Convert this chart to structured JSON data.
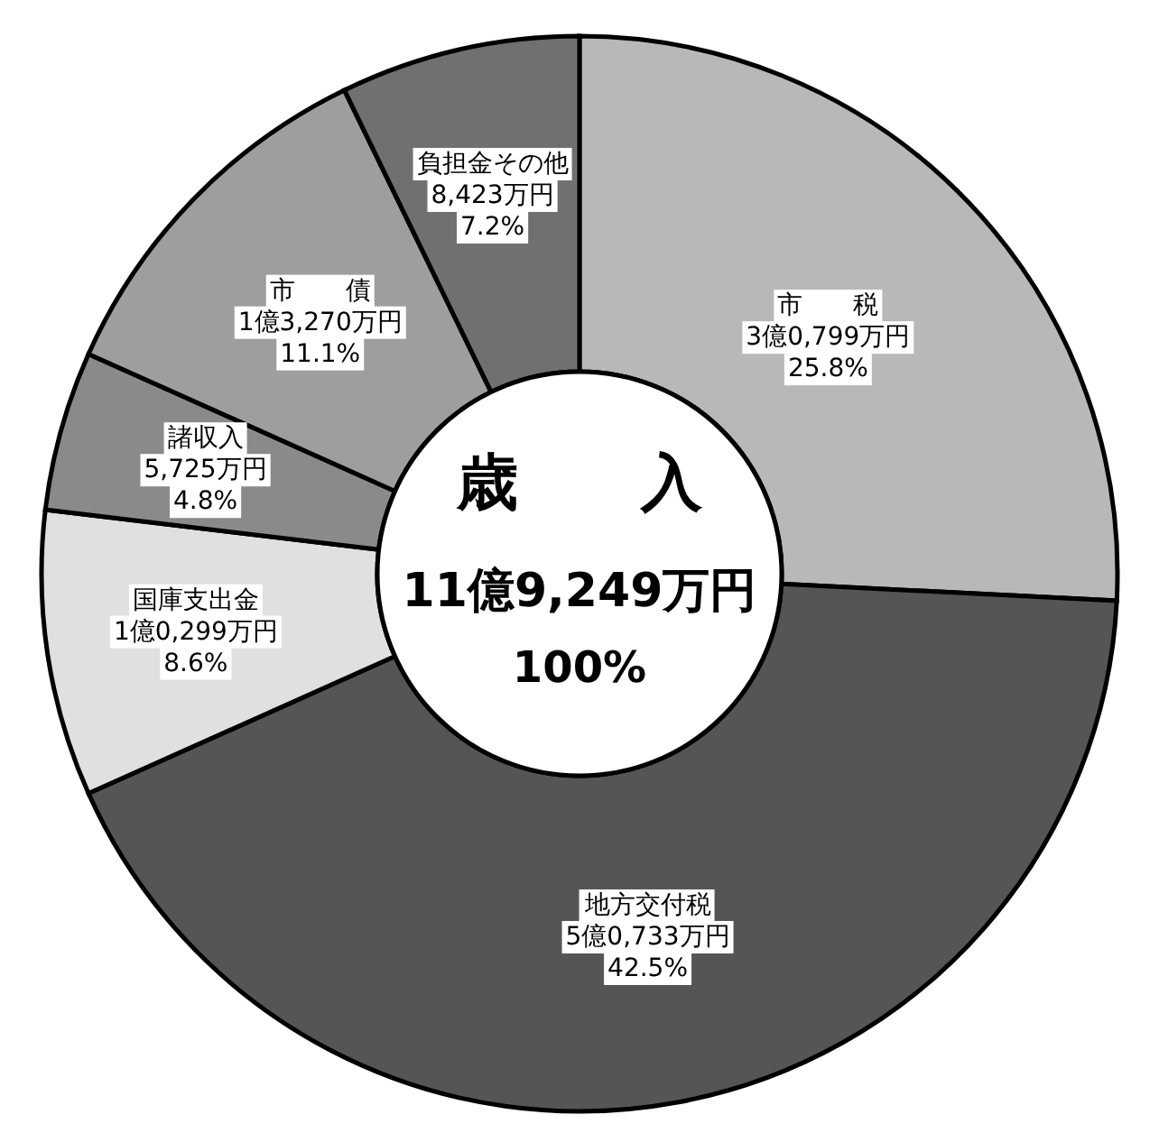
{
  "chart_data": {
    "type": "donut",
    "title": "歳　　入",
    "categories": [
      "市　　税",
      "地方交付税",
      "国庫支出金",
      "諸収入",
      "市　　債",
      "負担金その他"
    ],
    "values": [
      25.8,
      42.5,
      8.6,
      4.8,
      11.1,
      7.2
    ],
    "colors": [
      "#b8b8b8",
      "#555555",
      "#e0e0e0",
      "#8a8a8a",
      "#9e9e9e",
      "#707070"
    ],
    "value_labels": [
      "25.8%",
      "42.5%",
      "8.6%",
      "4.8%",
      "11.1%",
      "7.2%"
    ],
    "annotations": [
      "3億0,799万円",
      "5億0,733万円",
      "1億0,299万円",
      "5,725万円",
      "1億3,270万円",
      "8,423万円",
      "11億9,249万円",
      "100%"
    ]
  }
}
